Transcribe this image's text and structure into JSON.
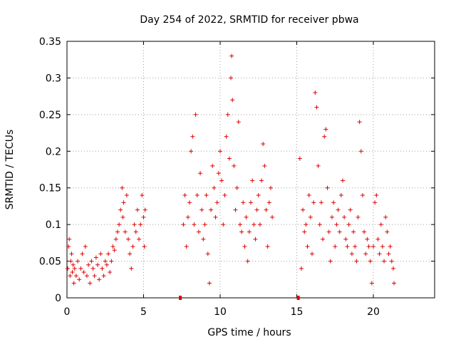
{
  "chart_data": {
    "type": "scatter",
    "title": "Day 254 of 2022, SRMTID for receiver pbwa",
    "xlabel": "GPS time / hours",
    "ylabel": "SRMTID / TECUs",
    "xlim": [
      0,
      24
    ],
    "ylim": [
      0,
      0.35
    ],
    "xticks": [
      0,
      5,
      10,
      15,
      20
    ],
    "xtick_labels": [
      "0",
      "5",
      "10",
      "15",
      "20"
    ],
    "yticks": [
      0,
      0.05,
      0.1,
      0.15,
      0.2,
      0.25,
      0.3,
      0.35
    ],
    "ytick_labels": [
      "0",
      "0.05",
      "0.1",
      "0.15",
      "0.2",
      "0.25",
      "0.3",
      "0.35"
    ],
    "grid": true,
    "marker": "+",
    "color": "#e00000",
    "series": [
      {
        "name": "SRMTID",
        "points": [
          [
            0.05,
            0.04
          ],
          [
            0.1,
            0.07
          ],
          [
            0.15,
            0.08
          ],
          [
            0.2,
            0.03
          ],
          [
            0.25,
            0.05
          ],
          [
            0.3,
            0.06
          ],
          [
            0.35,
            0.035
          ],
          [
            0.4,
            0.045
          ],
          [
            0.45,
            0.02
          ],
          [
            0.5,
            0.04
          ],
          [
            0.6,
            0.03
          ],
          [
            0.7,
            0.05
          ],
          [
            0.8,
            0.025
          ],
          [
            0.9,
            0.04
          ],
          [
            1.0,
            0.06
          ],
          [
            1.1,
            0.035
          ],
          [
            1.2,
            0.07
          ],
          [
            1.3,
            0.03
          ],
          [
            1.4,
            0.045
          ],
          [
            1.5,
            0.02
          ],
          [
            1.6,
            0.05
          ],
          [
            1.7,
            0.04
          ],
          [
            1.8,
            0.03
          ],
          [
            1.9,
            0.055
          ],
          [
            2.0,
            0.045
          ],
          [
            2.1,
            0.025
          ],
          [
            2.2,
            0.06
          ],
          [
            2.3,
            0.04
          ],
          [
            2.4,
            0.03
          ],
          [
            2.5,
            0.05
          ],
          [
            2.6,
            0.045
          ],
          [
            2.7,
            0.06
          ],
          [
            2.8,
            0.035
          ],
          [
            2.9,
            0.05
          ],
          [
            3.0,
            0.07
          ],
          [
            3.1,
            0.065
          ],
          [
            3.2,
            0.08
          ],
          [
            3.3,
            0.09
          ],
          [
            3.4,
            0.1
          ],
          [
            3.5,
            0.12
          ],
          [
            3.6,
            0.15
          ],
          [
            3.65,
            0.11
          ],
          [
            3.7,
            0.13
          ],
          [
            3.8,
            0.09
          ],
          [
            3.9,
            0.14
          ],
          [
            4.0,
            0.08
          ],
          [
            4.1,
            0.06
          ],
          [
            4.2,
            0.04
          ],
          [
            4.3,
            0.07
          ],
          [
            4.4,
            0.1
          ],
          [
            4.5,
            0.09
          ],
          [
            4.6,
            0.12
          ],
          [
            4.7,
            0.08
          ],
          [
            4.8,
            0.1
          ],
          [
            4.9,
            0.14
          ],
          [
            5.0,
            0.11
          ],
          [
            5.05,
            0.07
          ],
          [
            5.1,
            0.12
          ],
          [
            7.6,
            0.1
          ],
          [
            7.7,
            0.14
          ],
          [
            7.8,
            0.07
          ],
          [
            7.9,
            0.11
          ],
          [
            8.0,
            0.13
          ],
          [
            8.1,
            0.2
          ],
          [
            8.2,
            0.22
          ],
          [
            8.3,
            0.1
          ],
          [
            8.4,
            0.25
          ],
          [
            8.5,
            0.14
          ],
          [
            8.6,
            0.09
          ],
          [
            8.7,
            0.17
          ],
          [
            8.8,
            0.12
          ],
          [
            8.9,
            0.08
          ],
          [
            9.0,
            0.1
          ],
          [
            9.1,
            0.14
          ],
          [
            9.2,
            0.06
          ],
          [
            9.3,
            0.02
          ],
          [
            9.4,
            0.12
          ],
          [
            9.5,
            0.18
          ],
          [
            9.6,
            0.15
          ],
          [
            9.7,
            0.11
          ],
          [
            9.8,
            0.13
          ],
          [
            9.9,
            0.17
          ],
          [
            10.0,
            0.2
          ],
          [
            10.1,
            0.16
          ],
          [
            10.2,
            0.1
          ],
          [
            10.3,
            0.14
          ],
          [
            10.4,
            0.22
          ],
          [
            10.5,
            0.25
          ],
          [
            10.6,
            0.19
          ],
          [
            10.7,
            0.3
          ],
          [
            10.75,
            0.33
          ],
          [
            10.8,
            0.27
          ],
          [
            10.9,
            0.18
          ],
          [
            11.0,
            0.12
          ],
          [
            11.1,
            0.15
          ],
          [
            11.2,
            0.24
          ],
          [
            11.3,
            0.1
          ],
          [
            11.4,
            0.09
          ],
          [
            11.5,
            0.13
          ],
          [
            11.6,
            0.07
          ],
          [
            11.7,
            0.11
          ],
          [
            11.8,
            0.05
          ],
          [
            11.9,
            0.09
          ],
          [
            12.0,
            0.13
          ],
          [
            12.1,
            0.16
          ],
          [
            12.2,
            0.1
          ],
          [
            12.3,
            0.08
          ],
          [
            12.4,
            0.12
          ],
          [
            12.5,
            0.14
          ],
          [
            12.6,
            0.1
          ],
          [
            12.7,
            0.16
          ],
          [
            12.8,
            0.21
          ],
          [
            12.9,
            0.18
          ],
          [
            13.0,
            0.12
          ],
          [
            13.1,
            0.07
          ],
          [
            13.2,
            0.13
          ],
          [
            13.3,
            0.15
          ],
          [
            13.4,
            0.11
          ],
          [
            15.2,
            0.19
          ],
          [
            15.3,
            0.04
          ],
          [
            15.4,
            0.12
          ],
          [
            15.5,
            0.09
          ],
          [
            15.6,
            0.1
          ],
          [
            15.7,
            0.07
          ],
          [
            15.8,
            0.14
          ],
          [
            15.9,
            0.11
          ],
          [
            16.0,
            0.06
          ],
          [
            16.1,
            0.13
          ],
          [
            16.2,
            0.28
          ],
          [
            16.3,
            0.26
          ],
          [
            16.4,
            0.18
          ],
          [
            16.5,
            0.1
          ],
          [
            16.6,
            0.13
          ],
          [
            16.7,
            0.08
          ],
          [
            16.8,
            0.22
          ],
          [
            16.9,
            0.23
          ],
          [
            17.0,
            0.15
          ],
          [
            17.1,
            0.09
          ],
          [
            17.2,
            0.05
          ],
          [
            17.3,
            0.11
          ],
          [
            17.4,
            0.13
          ],
          [
            17.5,
            0.07
          ],
          [
            17.6,
            0.1
          ],
          [
            17.7,
            0.12
          ],
          [
            17.8,
            0.09
          ],
          [
            17.9,
            0.14
          ],
          [
            18.0,
            0.16
          ],
          [
            18.1,
            0.11
          ],
          [
            18.2,
            0.08
          ],
          [
            18.3,
            0.07
          ],
          [
            18.4,
            0.1
          ],
          [
            18.5,
            0.12
          ],
          [
            18.6,
            0.06
          ],
          [
            18.7,
            0.09
          ],
          [
            18.8,
            0.07
          ],
          [
            18.9,
            0.05
          ],
          [
            19.0,
            0.11
          ],
          [
            19.1,
            0.24
          ],
          [
            19.2,
            0.2
          ],
          [
            19.3,
            0.14
          ],
          [
            19.4,
            0.09
          ],
          [
            19.5,
            0.06
          ],
          [
            19.6,
            0.08
          ],
          [
            19.7,
            0.07
          ],
          [
            19.8,
            0.05
          ],
          [
            19.9,
            0.02
          ],
          [
            20.0,
            0.07
          ],
          [
            20.1,
            0.13
          ],
          [
            20.2,
            0.14
          ],
          [
            20.3,
            0.08
          ],
          [
            20.4,
            0.06
          ],
          [
            20.5,
            0.1
          ],
          [
            20.6,
            0.07
          ],
          [
            20.7,
            0.05
          ],
          [
            20.8,
            0.11
          ],
          [
            20.9,
            0.09
          ],
          [
            21.0,
            0.06
          ],
          [
            21.1,
            0.07
          ],
          [
            21.2,
            0.05
          ],
          [
            21.3,
            0.04
          ],
          [
            21.35,
            0.02
          ]
        ]
      }
    ],
    "gap_markers": [
      7.4,
      15.1
    ]
  }
}
